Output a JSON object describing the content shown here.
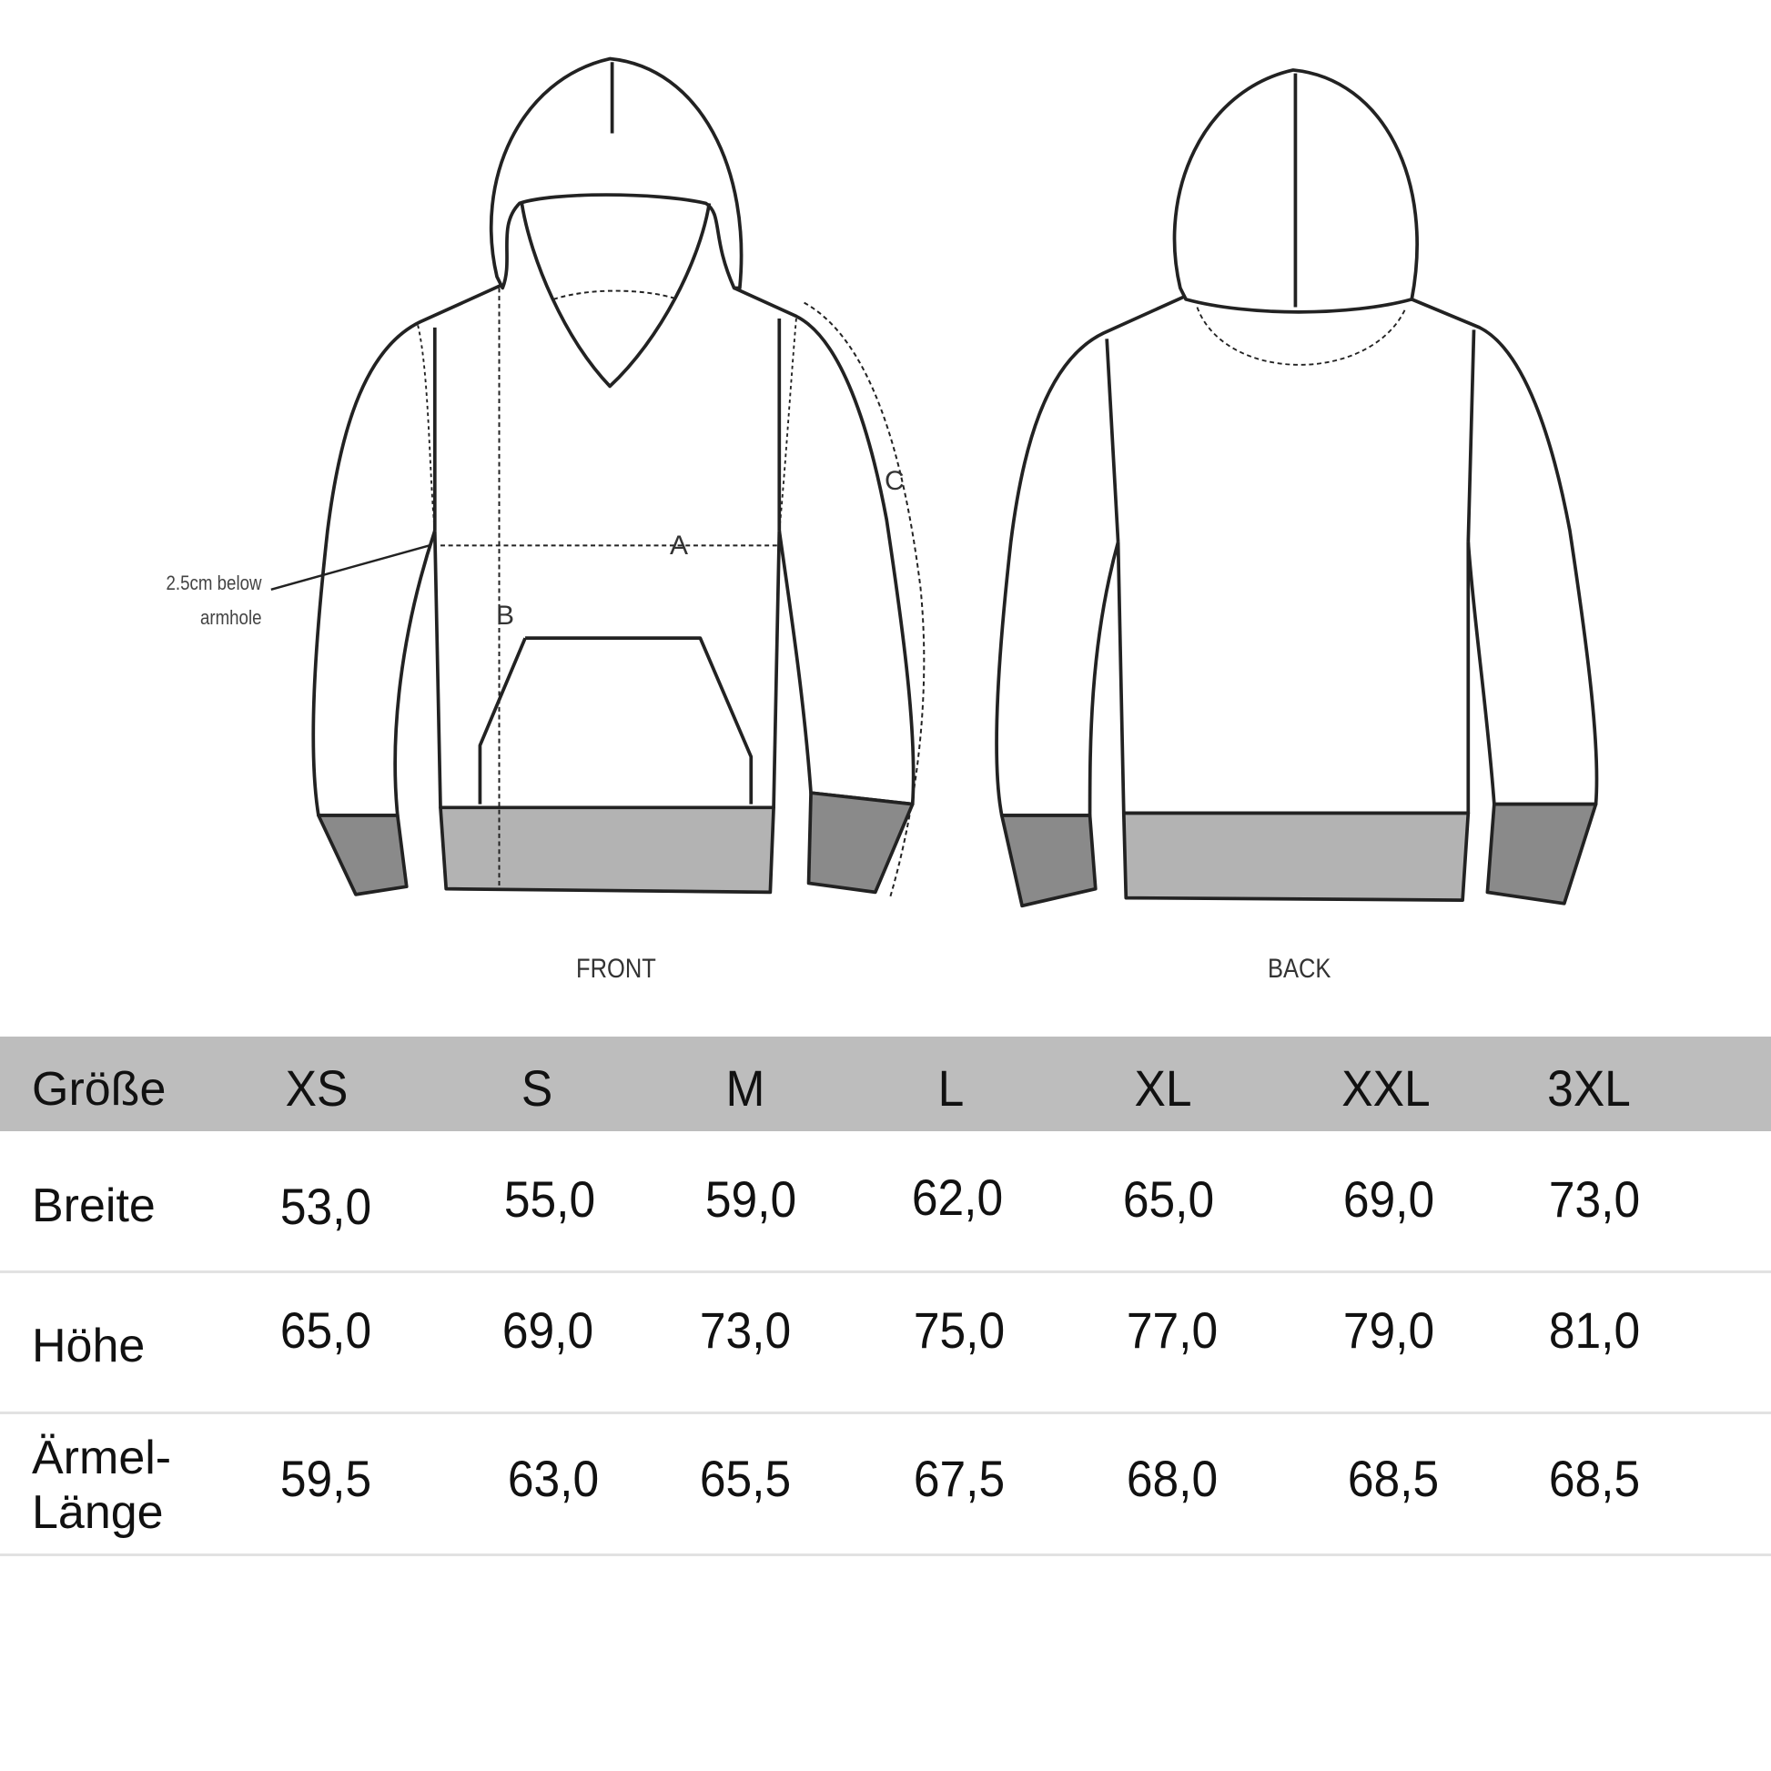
{
  "diagram": {
    "front_label": "FRONT",
    "back_label": "BACK",
    "annotation": [
      "2.5cm below",
      "armhole"
    ],
    "markers": {
      "a": "A",
      "b": "B",
      "c": "C"
    },
    "colors": {
      "outline": "#222222",
      "band": "#b3b3b3",
      "cuff": "#8a8a8a"
    }
  },
  "size_table": {
    "header_label": "Größe",
    "sizes": [
      "XS",
      "S",
      "M",
      "L",
      "XL",
      "XXL",
      "3XL"
    ],
    "rows": [
      {
        "label": "Breite",
        "values": [
          "53,0",
          "55,0",
          "59,0",
          "62,0",
          "65,0",
          "69,0",
          "73,0"
        ]
      },
      {
        "label": "Höhe",
        "values": [
          "65,0",
          "69,0",
          "73,0",
          "75,0",
          "77,0",
          "79,0",
          "81,0"
        ]
      },
      {
        "label_lines": [
          "Ärmel-",
          "Länge"
        ],
        "values": [
          "59,5",
          "63,0",
          "65,5",
          "67,5",
          "68,0",
          "68,5",
          "68,5"
        ]
      }
    ],
    "header_bg": "#bdbdbd"
  }
}
